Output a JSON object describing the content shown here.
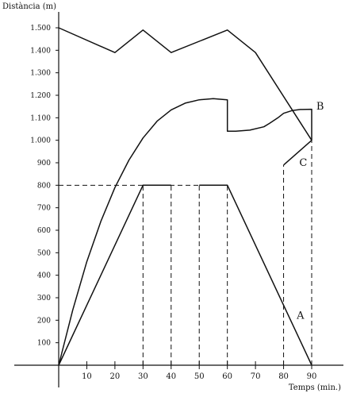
{
  "chart_data": {
    "type": "line",
    "xlabel": "Temps (min.)",
    "ylabel": "Distància (m)",
    "xlim": [
      0,
      90
    ],
    "ylim": [
      0,
      1500
    ],
    "x_ticks": [
      10,
      20,
      30,
      40,
      50,
      60,
      70,
      80,
      90
    ],
    "x_tick_labels": [
      "10",
      "20",
      "30",
      "40",
      "50",
      "60",
      "70",
      "80",
      "90"
    ],
    "y_ticks": [
      100,
      200,
      300,
      400,
      500,
      600,
      700,
      800,
      900,
      1000,
      1100,
      1200,
      1300,
      1400,
      1500
    ],
    "y_tick_labels": [
      "100",
      "200",
      "300",
      "400",
      "500",
      "600",
      "700",
      "800",
      "900",
      "1.000",
      "1.100",
      "1.200",
      "1.300",
      "1.400",
      "1.500"
    ],
    "grid": false,
    "series": [
      {
        "name": "A",
        "style": "solid",
        "segments": [
          [
            [
              0,
              0
            ],
            [
              30,
              800
            ],
            [
              40,
              800
            ]
          ],
          [
            [
              50,
              800
            ],
            [
              60,
              800
            ],
            [
              90,
              0
            ]
          ]
        ]
      },
      {
        "name": "B",
        "style": "solid",
        "segments": [
          [
            [
              0,
              0
            ],
            [
              5,
              245
            ],
            [
              10,
              460
            ],
            [
              15,
              640
            ],
            [
              20,
              790
            ],
            [
              25,
              912
            ],
            [
              30,
              1010
            ],
            [
              35,
              1085
            ],
            [
              40,
              1135
            ],
            [
              45,
              1165
            ],
            [
              50,
              1180
            ],
            [
              55,
              1185
            ],
            [
              60,
              1180
            ],
            [
              60,
              1040
            ],
            [
              63,
              1040
            ],
            [
              68,
              1045
            ],
            [
              73,
              1060
            ],
            [
              75,
              1075
            ],
            [
              78,
              1100
            ],
            [
              80,
              1120
            ],
            [
              83,
              1132
            ],
            [
              86,
              1137
            ],
            [
              90,
              1138
            ],
            [
              90,
              1000
            ]
          ]
        ]
      },
      {
        "name": "C",
        "style": "solid",
        "segments": [
          [
            [
              80,
              890
            ],
            [
              90,
              1000
            ]
          ]
        ]
      },
      {
        "name": "",
        "style": "solid",
        "segments": [
          [
            [
              0,
              1500
            ],
            [
              20,
              1390
            ],
            [
              30,
              1490
            ],
            [
              40,
              1390
            ],
            [
              60,
              1490
            ],
            [
              70,
              1390
            ],
            [
              90,
              1000
            ]
          ]
        ]
      }
    ],
    "reference_lines": [
      {
        "style": "dashed",
        "from": [
          0,
          800
        ],
        "to": [
          60,
          800
        ]
      },
      {
        "style": "dashed",
        "from": [
          30,
          0
        ],
        "to": [
          30,
          800
        ]
      },
      {
        "style": "dashed",
        "from": [
          40,
          0
        ],
        "to": [
          40,
          800
        ]
      },
      {
        "style": "dashed",
        "from": [
          50,
          0
        ],
        "to": [
          50,
          800
        ]
      },
      {
        "style": "dashed",
        "from": [
          60,
          0
        ],
        "to": [
          60,
          800
        ]
      },
      {
        "style": "dashed",
        "from": [
          80,
          0
        ],
        "to": [
          80,
          890
        ]
      },
      {
        "style": "dashed",
        "from": [
          90,
          0
        ],
        "to": [
          90,
          1138
        ]
      }
    ],
    "annotations": [
      {
        "text": "A",
        "x": 86,
        "y": 220
      },
      {
        "text": "B",
        "x": 93,
        "y": 1150
      },
      {
        "text": "C",
        "x": 87,
        "y": 900
      }
    ],
    "colors": {
      "line": "#111111",
      "background": "#ffffff"
    }
  }
}
